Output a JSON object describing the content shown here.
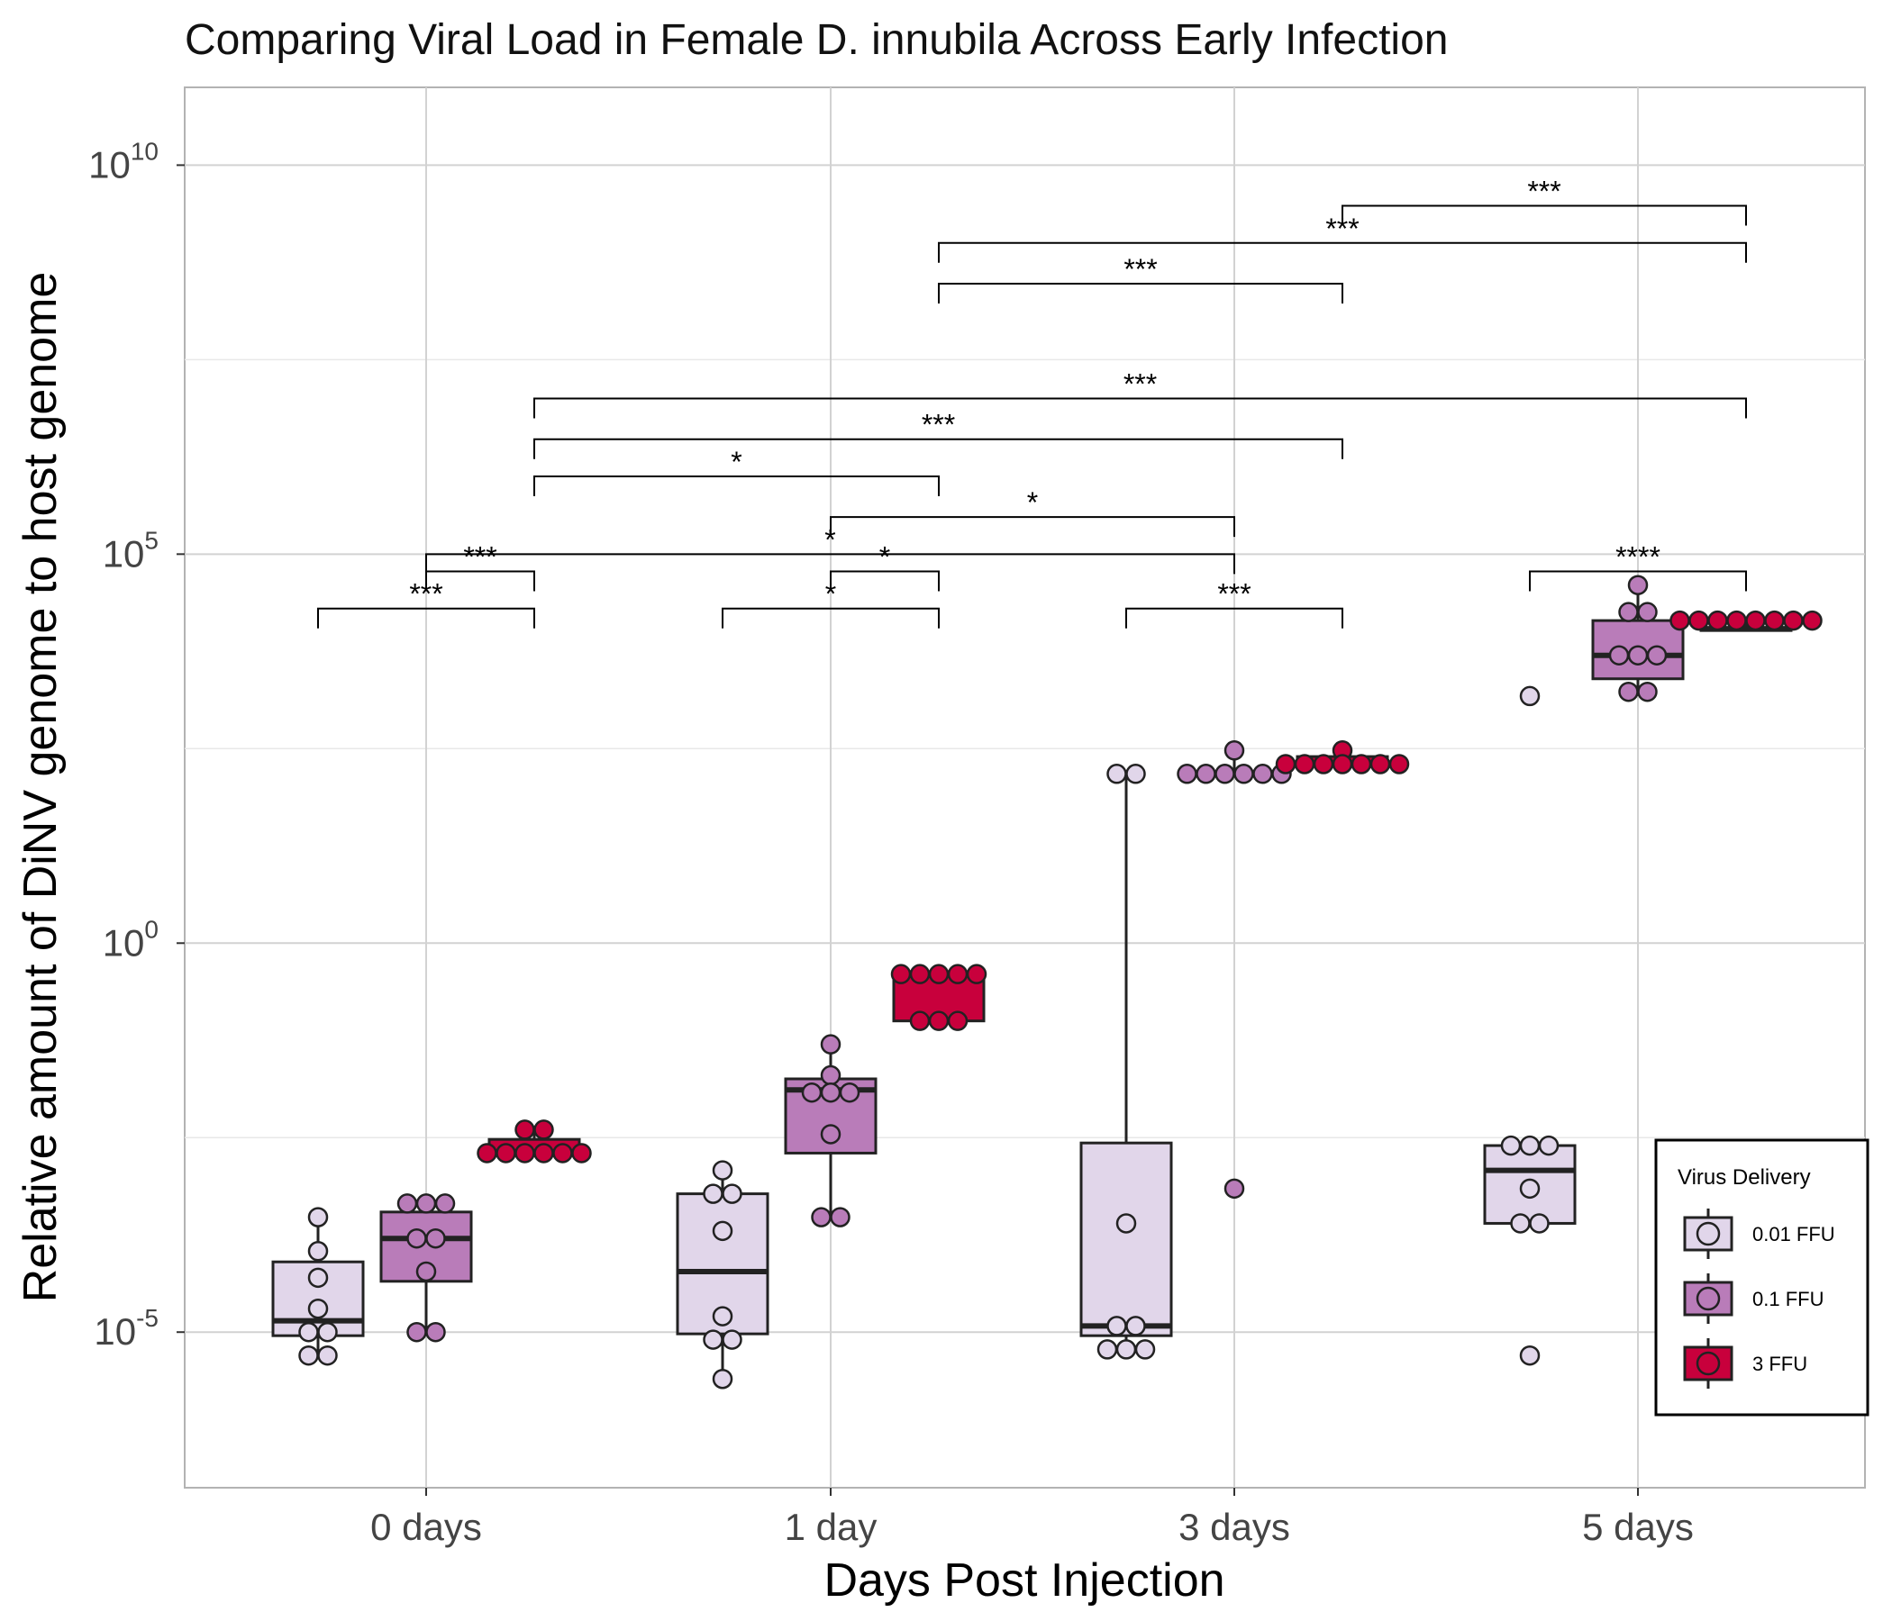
{
  "chart_data": {
    "type": "box",
    "title": "Comparing Viral Load in Female D. innubila Across Early Infection",
    "xlabel": "Days Post Injection",
    "ylabel": "Relative amount of DiNV genome to host genome",
    "y_scale": "log10",
    "ylim": [
      1e-07,
      100000000000.0
    ],
    "y_ticks": [
      {
        "base": "10",
        "exp": "-5",
        "value": 1e-05
      },
      {
        "base": "10",
        "exp": "0",
        "value": 1
      },
      {
        "base": "10",
        "exp": "5",
        "value": 100000.0
      },
      {
        "base": "10",
        "exp": "10",
        "value": 10000000000.0
      }
    ],
    "grid": true,
    "categories": [
      "0 days",
      "1 day",
      "3 days",
      "5 days"
    ],
    "legend": {
      "title": "Virus Delivery",
      "position": "bottom-right",
      "entries": [
        {
          "label": "0.01 FFU",
          "color": "#e1d6ea"
        },
        {
          "label": "0.1 FFU",
          "color": "#b97cb9"
        },
        {
          "label": "3 FFU",
          "color": "#c8003c"
        }
      ]
    },
    "series": [
      {
        "name": "0.01 FFU",
        "color": "#e1d6ea",
        "boxes": [
          {
            "category": "0 days",
            "q1": 9e-06,
            "median": 1.4e-05,
            "q3": 8e-05,
            "whisker_low": 5e-06,
            "whisker_high": 0.0003,
            "points": [
              0.0003,
              0.00011,
              5e-05,
              2e-05,
              1e-05,
              9e-06,
              5e-06,
              5e-06
            ]
          },
          {
            "category": "1 day",
            "q1": 9.5e-06,
            "median": 6e-05,
            "q3": 0.0006,
            "whisker_low": 2.5e-06,
            "whisker_high": 0.0012,
            "points": [
              0.0012,
              0.0006,
              0.00055,
              0.0002,
              1.6e-05,
              8e-06,
              8e-06,
              2.5e-06
            ]
          },
          {
            "category": "3 days",
            "q1": 9e-06,
            "median": 1.2e-05,
            "q3": 0.0027,
            "whisker_low": 6e-06,
            "whisker_high": 150.0,
            "points": [
              150.0,
              150.0,
              0.00025,
              1.2e-05,
              1.2e-05,
              6e-06,
              6e-06,
              6e-06
            ]
          },
          {
            "category": "5 days",
            "q1": 0.00025,
            "median": 0.0012,
            "q3": 0.0025,
            "whisker_low": 0.00025,
            "whisker_high": 0.0025,
            "points": [
              1500.0,
              0.0025,
              0.0025,
              0.0025,
              0.0007,
              0.00025,
              0.00025,
              5e-06
            ]
          }
        ]
      },
      {
        "name": "0.1 FFU",
        "color": "#b97cb9",
        "boxes": [
          {
            "category": "0 days",
            "q1": 4.5e-05,
            "median": 0.00016,
            "q3": 0.00035,
            "whisker_low": 1e-05,
            "whisker_high": 0.00045,
            "points": [
              0.00045,
              0.00045,
              0.00045,
              0.00016,
              0.00016,
              6e-05,
              1e-05,
              1e-05
            ]
          },
          {
            "category": "1 day",
            "q1": 0.002,
            "median": 0.013,
            "q3": 0.018,
            "whisker_low": 0.0003,
            "whisker_high": 0.05,
            "points": [
              0.05,
              0.02,
              0.012,
              0.012,
              0.012,
              0.0035,
              0.0003,
              0.0003
            ]
          },
          {
            "category": "3 days",
            "q1": 150,
            "median": 150,
            "q3": 150,
            "whisker_low": 150,
            "whisker_high": 300,
            "points": [
              300,
              150,
              150,
              150,
              150,
              150,
              150,
              0.0007
            ]
          },
          {
            "category": "5 days",
            "q1": 2500.0,
            "median": 5000.0,
            "q3": 14000.0,
            "whisker_low": 1500.0,
            "whisker_high": 40000.0,
            "points": [
              40000.0,
              18000.0,
              15000.0,
              5000.0,
              5000.0,
              5000.0,
              1700.0,
              1700.0
            ]
          }
        ]
      },
      {
        "name": "3 FFU",
        "color": "#c8003c",
        "boxes": [
          {
            "category": "0 days",
            "q1": 0.002,
            "median": 0.002,
            "q3": 0.003,
            "whisker_low": 0.002,
            "whisker_high": 0.004,
            "points": [
              0.004,
              0.004,
              0.002,
              0.002,
              0.002,
              0.002,
              0.002,
              0.002
            ]
          },
          {
            "category": "1 day",
            "q1": 0.1,
            "median": 0.4,
            "q3": 0.4,
            "whisker_low": 0.1,
            "whisker_high": 0.4,
            "points": [
              0.4,
              0.4,
              0.4,
              0.4,
              0.4,
              0.1,
              0.1,
              0.1
            ]
          },
          {
            "category": "3 days",
            "q1": 200,
            "median": 200,
            "q3": 250,
            "whisker_low": 150,
            "whisker_high": 300,
            "points": [
              300,
              200,
              200,
              200,
              200,
              200,
              200,
              200
            ]
          },
          {
            "category": "5 days",
            "q1": 11000.0,
            "median": 11000.0,
            "q3": 11000.0,
            "whisker_low": 11000.0,
            "whisker_high": 14000.0,
            "points": [
              14000.0,
              11000.0,
              11000.0,
              11000.0,
              11000.0,
              11000.0,
              11000.0,
              11000.0
            ]
          }
        ]
      }
    ],
    "significance": [
      {
        "from": {
          "category": "0 days",
          "series": "0.01 FFU"
        },
        "to": {
          "category": "0 days",
          "series": "3 FFU"
        },
        "label": "***",
        "y": 20000.0
      },
      {
        "from": {
          "category": "0 days",
          "series": "0.1 FFU"
        },
        "to": {
          "category": "0 days",
          "series": "3 FFU"
        },
        "label": "***",
        "y": 60000.0
      },
      {
        "from": {
          "category": "1 day",
          "series": "0.01 FFU"
        },
        "to": {
          "category": "1 day",
          "series": "3 FFU"
        },
        "label": "*",
        "y": 20000.0
      },
      {
        "from": {
          "category": "1 day",
          "series": "0.1 FFU"
        },
        "to": {
          "category": "1 day",
          "series": "3 FFU"
        },
        "label": "*",
        "y": 60000.0
      },
      {
        "from": {
          "category": "3 days",
          "series": "0.01 FFU"
        },
        "to": {
          "category": "3 days",
          "series": "3 FFU"
        },
        "label": "***",
        "y": 20000.0
      },
      {
        "from": {
          "category": "5 days",
          "series": "0.01 FFU"
        },
        "to": {
          "category": "5 days",
          "series": "3 FFU"
        },
        "label": "****",
        "y": 60000.0
      },
      {
        "from": {
          "category": "0 days",
          "series": "0.1 FFU"
        },
        "to": {
          "category": "3 days",
          "series": "0.1 FFU"
        },
        "label": "*",
        "y": 100000.0
      },
      {
        "from": {
          "category": "1 day",
          "series": "0.1 FFU"
        },
        "to": {
          "category": "3 days",
          "series": "0.1 FFU"
        },
        "label": "*",
        "y": 300000.0
      },
      {
        "from": {
          "category": "0 days",
          "series": "3 FFU"
        },
        "to": {
          "category": "1 day",
          "series": "3 FFU"
        },
        "label": "*",
        "y": 1000000.0
      },
      {
        "from": {
          "category": "0 days",
          "series": "3 FFU"
        },
        "to": {
          "category": "3 days",
          "series": "3 FFU"
        },
        "label": "***",
        "y": 3000000.0
      },
      {
        "from": {
          "category": "0 days",
          "series": "3 FFU"
        },
        "to": {
          "category": "5 days",
          "series": "3 FFU"
        },
        "label": "***",
        "y": 10000000.0
      },
      {
        "from": {
          "category": "1 day",
          "series": "3 FFU"
        },
        "to": {
          "category": "3 days",
          "series": "3 FFU"
        },
        "label": "***",
        "y": 300000000.0
      },
      {
        "from": {
          "category": "1 day",
          "series": "3 FFU"
        },
        "to": {
          "category": "5 days",
          "series": "3 FFU"
        },
        "label": "***",
        "y": 1000000000.0
      },
      {
        "from": {
          "category": "3 days",
          "series": "3 FFU"
        },
        "to": {
          "category": "5 days",
          "series": "3 FFU"
        },
        "label": "***",
        "y": 3000000000.0
      }
    ]
  }
}
